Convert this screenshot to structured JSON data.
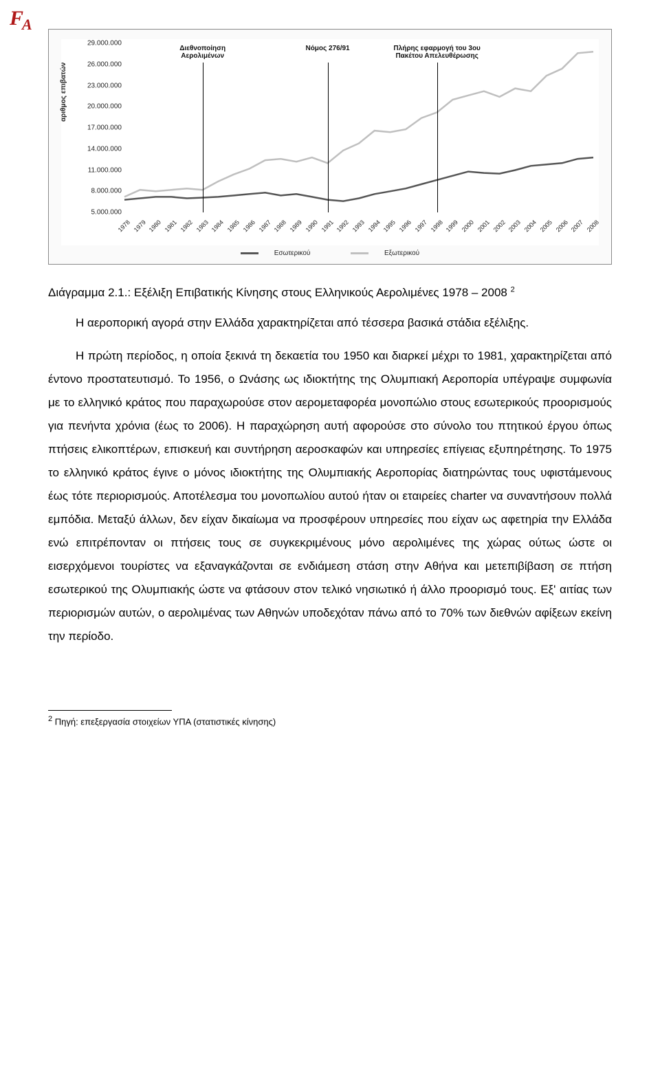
{
  "logo": {
    "text": "FA"
  },
  "chart": {
    "type": "line",
    "ylabel": "αριθμος επιβατών",
    "ylim": [
      5000000,
      29000000
    ],
    "ytick_step": 3000000,
    "yticks": [
      "5.000.000",
      "8.000.000",
      "11.000.000",
      "14.000.000",
      "17.000.000",
      "20.000.000",
      "23.000.000",
      "26.000.000",
      "29.000.000"
    ],
    "xcategories": [
      "1978",
      "1979",
      "1980",
      "1981",
      "1982",
      "1983",
      "1984",
      "1985",
      "1986",
      "1987",
      "1988",
      "1989",
      "1990",
      "1991",
      "1992",
      "1993",
      "1994",
      "1995",
      "1996",
      "1997",
      "1998",
      "1999",
      "2000",
      "2001",
      "2002",
      "2003",
      "2004",
      "2005",
      "2006",
      "2007",
      "2008"
    ],
    "series": [
      {
        "name": "Εσωτερικού",
        "color": "#555555",
        "line_width": 2.5,
        "values": [
          6800000,
          7000000,
          7200000,
          7200000,
          7000000,
          7100000,
          7200000,
          7400000,
          7600000,
          7800000,
          7400000,
          7600000,
          7200000,
          6800000,
          6600000,
          7000000,
          7600000,
          8000000,
          8400000,
          9000000,
          9600000,
          10200000,
          10800000,
          10600000,
          10500000,
          11000000,
          11600000,
          11800000,
          12000000,
          12600000,
          12800000
        ]
      },
      {
        "name": "Εξωτερικού",
        "color": "#bfbfbf",
        "line_width": 2.5,
        "values": [
          7200000,
          8200000,
          8000000,
          8200000,
          8400000,
          8200000,
          9400000,
          10400000,
          11200000,
          12400000,
          12600000,
          12200000,
          12800000,
          12000000,
          13800000,
          14800000,
          16600000,
          16400000,
          16800000,
          18400000,
          19200000,
          21000000,
          21600000,
          22200000,
          21400000,
          22600000,
          22200000,
          24400000,
          25400000,
          27600000,
          27800000
        ]
      }
    ],
    "annotations": [
      {
        "label_lines": [
          "Διεθνοποίηση",
          "Αερολιμένων"
        ],
        "x_index": 5
      },
      {
        "label_lines": [
          "Νόμος 276/91"
        ],
        "x_index": 13
      },
      {
        "label_lines": [
          "Πλήρης εφαρμογή του 3ου",
          "Πακέτου Απελευθέρωσης"
        ],
        "x_index": 20
      }
    ],
    "legend_items": [
      {
        "label": "Εσωτερικού",
        "color": "#555555"
      },
      {
        "label": "Εξωτερικού",
        "color": "#bfbfbf"
      }
    ],
    "background_color": "#ffffff",
    "grid_color": "#e0e0e0",
    "axis_fontsize": 10,
    "label_fontsize": 10
  },
  "caption": {
    "prefix": "Διάγραμμα 2.1.: Εξέλιξη Επιβατικής Κίνησης στους Ελληνικούς Αερολιμένες 1978 – 2008",
    "sup": "2"
  },
  "paragraphs": {
    "p1": "Η αεροπορική αγορά στην Ελλάδα χαρακτηρίζεται από τέσσερα βασικά στάδια εξέλιξης.",
    "p2": "Η πρώτη περίοδος,  η οποία ξεκινά τη δεκαετία του 1950  και διαρκεί μέχρι το 1981, χαρακτηρίζεται από έντονο προστατευτισμό. Το 1956, ο Ωνάσης ως ιδιοκτήτης της Ολυμπιακή Αεροπορία υπέγραψε συμφωνία με το ελληνικό κράτος που παραχωρούσε στον αερομεταφορέα μονοπώλιο στους εσωτερικούς προορισμούς για πενήντα χρόνια (έως το 2006). Η παραχώρηση αυτή αφορούσε στο σύνολο του πτητικού έργου όπως πτήσεις ελικοπτέρων,  επισκευή και συντήρηση αεροσκαφών και υπηρεσίες επίγειας εξυπηρέτησης. Το 1975  το ελληνικό κράτος έγινε ο μόνος ιδιοκτήτης της Ολυμπιακής Αεροπορίας διατηρώντας τους υφιστάμενους έως τότε περιορισμούς.  Αποτέλεσμα του μονοπωλίου αυτού ήταν οι εταιρείες charter να συναντήσουν πολλά εμπόδια. Μεταξύ άλλων, δεν είχαν δικαίωμα να προσφέρουν υπηρεσίες που είχαν ως αφετηρία την Ελλάδα ενώ επιτρέπονταν οι πτήσεις τους σε συγκεκριμένους μόνο αερολιμένες της χώρας ούτως ώστε οι εισερχόμενοι τουρίστες να εξαναγκάζονται σε ενδιάμεση στάση στην Αθήνα και μετεπιβίβαση σε πτήση εσωτερικού της Ολυμπιακής ώστε να φτάσουν στον τελικό νησιωτικό ή άλλο προορισμό τους.  Εξ' αιτίας των περιορισμών αυτών, ο αερολιμένας των Αθηνών υποδεχόταν πάνω από το 70% των διεθνών αφίξεων εκείνη την περίοδο."
  },
  "footnote": {
    "marker": "2",
    "text": " Πηγή: επεξεργασία στοιχείων ΥΠΑ (στατιστικές κίνησης)"
  }
}
